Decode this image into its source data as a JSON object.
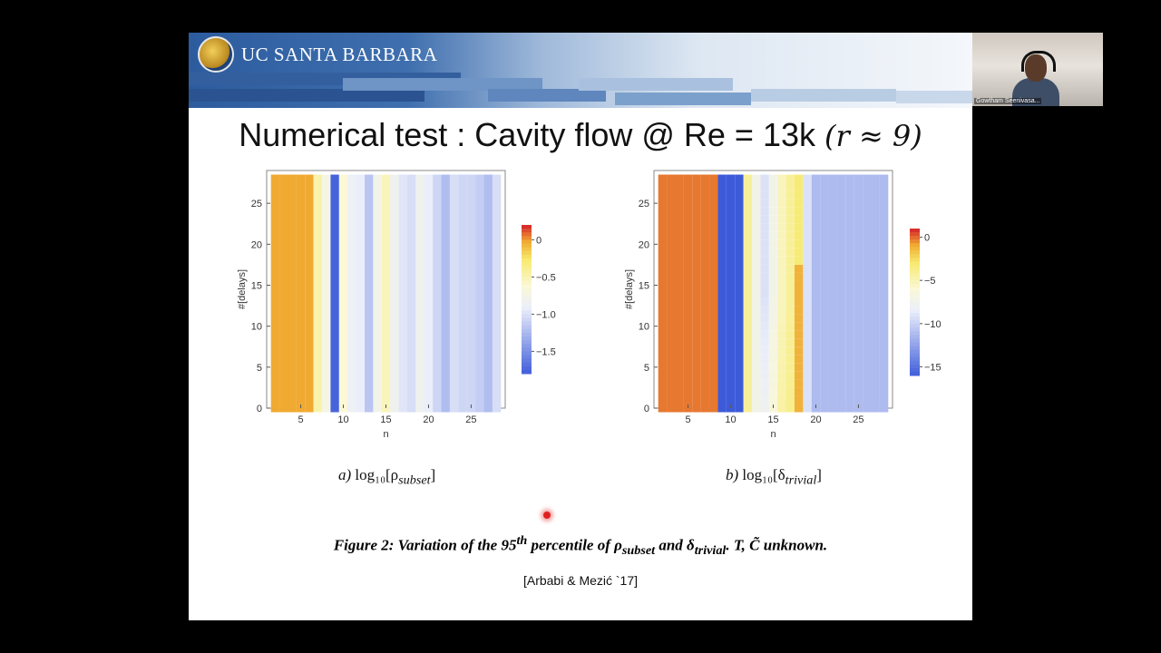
{
  "banner": {
    "brand": "UC SANTA BARBARA"
  },
  "title": {
    "text": "Numerical test : Cavity flow @ Re = 13k ",
    "math": "(r ≈ 9)"
  },
  "plot_a": {
    "ylabel": "#[delays]",
    "xlabel": "n",
    "xticks": [
      "5",
      "10",
      "15",
      "20",
      "25"
    ],
    "yticks": [
      "0",
      "5",
      "10",
      "15",
      "20",
      "25"
    ],
    "colorbar_ticks": [
      "0",
      "−0.5",
      "−1.0",
      "−1.5"
    ],
    "caption_prefix": "a) ",
    "caption": "log₁₀[ρ",
    "caption_sub": "subset",
    "caption_end": "]"
  },
  "plot_b": {
    "ylabel": "#[delays]",
    "xlabel": "n",
    "xticks": [
      "5",
      "10",
      "15",
      "20",
      "25"
    ],
    "yticks": [
      "0",
      "5",
      "10",
      "15",
      "20",
      "25"
    ],
    "colorbar_ticks": [
      "0",
      "−5",
      "−10",
      "−15"
    ],
    "caption_prefix": "b) ",
    "caption": "log₁₀[δ",
    "caption_sub": "trivial",
    "caption_end": "]"
  },
  "figure_caption": {
    "a": "Figure 2: Variation of the 95",
    "sup": "th",
    "b": " percentile of  ρ",
    "sub1": "subset",
    "c": " and δ",
    "sub2": "trivial",
    "d": ". T, C̃ unknown."
  },
  "reference": "[Arbabi & Mezić `17]",
  "video": {
    "name": "Gowtham Seenivasa..."
  },
  "colors": {
    "red": "#d7302c",
    "blue": "#3d5bd9",
    "yellow": "#f7ea6e"
  },
  "chart_data": [
    {
      "type": "heatmap",
      "xlabel": "n",
      "ylabel": "#[delays]",
      "xlim": [
        1,
        29
      ],
      "ylim": [
        0,
        29
      ],
      "color_range": [
        -1.8,
        0.2
      ],
      "columns_n": [
        2,
        3,
        4,
        5,
        6,
        7,
        8,
        9,
        10,
        11,
        12,
        13,
        14,
        15,
        16,
        17,
        18,
        19,
        20,
        21,
        22,
        23,
        24,
        25,
        26,
        27,
        28
      ],
      "column_values": [
        0,
        0,
        0,
        0,
        0,
        -0.45,
        -0.7,
        -1.75,
        -0.6,
        -0.85,
        -0.9,
        -1.15,
        -0.75,
        -0.5,
        -0.8,
        -0.95,
        -1.0,
        -0.8,
        -0.9,
        -1.05,
        -1.2,
        -1.0,
        -1.05,
        -1.05,
        -1.1,
        -1.2,
        -1.0
      ],
      "rows": 29
    },
    {
      "type": "heatmap",
      "xlabel": "n",
      "ylabel": "#[delays]",
      "xlim": [
        1,
        29
      ],
      "ylim": [
        0,
        29
      ],
      "color_range": [
        -16,
        1
      ],
      "columns_n": [
        2,
        3,
        4,
        5,
        6,
        7,
        8,
        9,
        10,
        11,
        12,
        13,
        14,
        15,
        16,
        17,
        18,
        19,
        20,
        21,
        22,
        23,
        24,
        25,
        26,
        27,
        28
      ],
      "column_values": [
        0,
        0,
        0,
        0,
        0,
        0,
        0,
        -16,
        -16,
        -16,
        -4,
        -7,
        -9,
        -7,
        -5,
        -4,
        -3,
        -9,
        -11,
        -11,
        -11,
        -11,
        -11,
        -11,
        -11,
        -11,
        -11
      ],
      "rows": 29
    }
  ]
}
